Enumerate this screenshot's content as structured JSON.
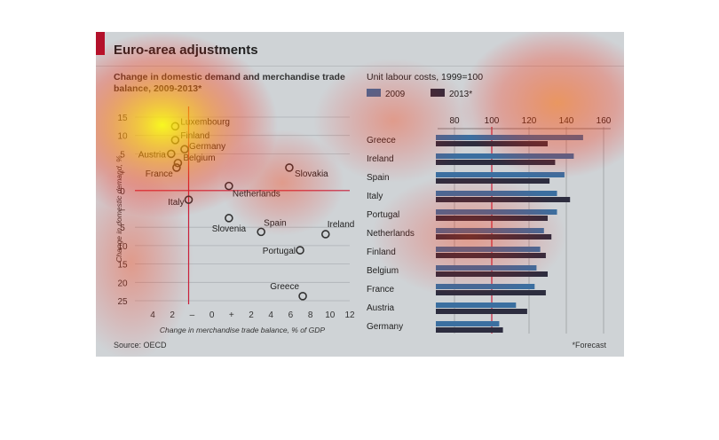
{
  "title": "Euro-area adjustments",
  "source": "Source: OECD",
  "footnote": "*Forecast",
  "colors": {
    "accent": "#b3112b",
    "bar_2009": "#3b6fa0",
    "bar_2013": "#2d2d3f",
    "marker": "#333333",
    "zero_line": "#c9203a"
  },
  "chart_data": [
    {
      "type": "scatter",
      "title": "Change in domestic demand and merchandise trade balance, 2009-2013*",
      "xlabel": "Change in merchandise trade balance, % of GDP",
      "ylabel": "Change in domestic demand, %",
      "xlim": [
        -4,
        12
      ],
      "ylim": [
        -25,
        15
      ],
      "x_ticks": [
        "4",
        "2",
        "–",
        "0",
        "+",
        "2",
        "4",
        "6",
        "8",
        "10",
        "12"
      ],
      "y_ticks": [
        "15",
        "10",
        "5",
        "+",
        "0",
        "–",
        "5",
        "10",
        "15",
        "20",
        "25"
      ],
      "grid": "horizontal",
      "points": [
        {
          "name": "Luxembourg",
          "x": -1,
          "y": 13
        },
        {
          "name": "Finland",
          "x": -1,
          "y": 10
        },
        {
          "name": "Austria",
          "x": -1.3,
          "y": 7
        },
        {
          "name": "Germany",
          "x": -0.3,
          "y": 8
        },
        {
          "name": "Belgium",
          "x": -0.8,
          "y": 5
        },
        {
          "name": "France",
          "x": -0.9,
          "y": 4
        },
        {
          "name": "Slovakia",
          "x": 7.5,
          "y": 4
        },
        {
          "name": "Netherlands",
          "x": 3,
          "y": 0
        },
        {
          "name": "Italy",
          "x": 0,
          "y": -3
        },
        {
          "name": "Slovenia",
          "x": 3,
          "y": -7
        },
        {
          "name": "Spain",
          "x": 5.4,
          "y": -10
        },
        {
          "name": "Ireland",
          "x": 10.2,
          "y": -10.5
        },
        {
          "name": "Portugal",
          "x": 8.3,
          "y": -14
        },
        {
          "name": "Greece",
          "x": 8.5,
          "y": -24
        }
      ]
    },
    {
      "type": "bar",
      "orientation": "horizontal",
      "title": "Unit labour costs, 1999=100",
      "xlim": [
        70,
        165
      ],
      "x_ticks": [
        80,
        100,
        120,
        140,
        160
      ],
      "legend": "top-left",
      "categories": [
        "Greece",
        "Ireland",
        "Spain",
        "Italy",
        "Portugal",
        "Netherlands",
        "Finland",
        "Belgium",
        "France",
        "Austria",
        "Germany"
      ],
      "series": [
        {
          "name": "2009",
          "values": [
            149,
            144,
            139,
            135,
            135,
            128,
            126,
            124,
            123,
            113,
            104
          ]
        },
        {
          "name": "2013*",
          "values": [
            130,
            134,
            131,
            142,
            130,
            132,
            129,
            130,
            129,
            119,
            106
          ]
        }
      ]
    }
  ]
}
